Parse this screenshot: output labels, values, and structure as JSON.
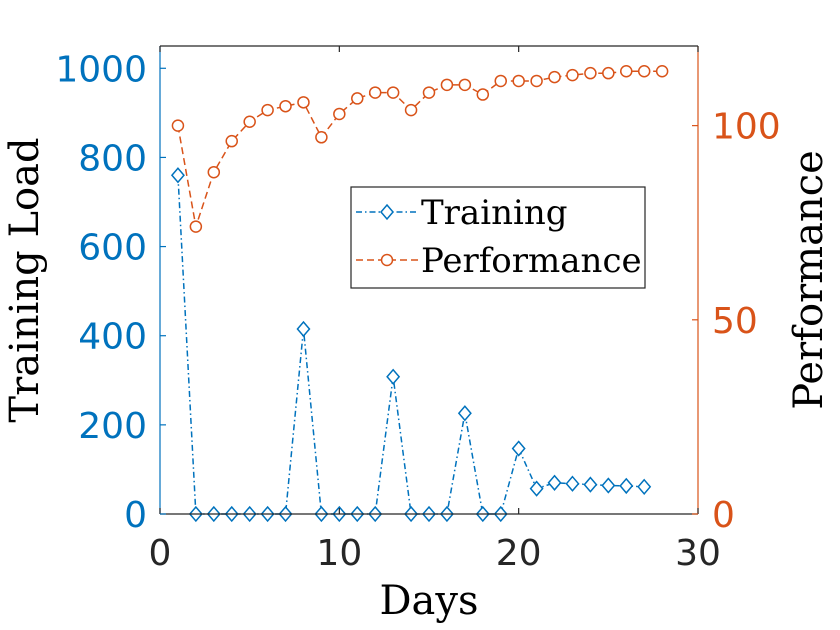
{
  "chart_data": {
    "type": "line",
    "title": "",
    "xlabel": "Days",
    "ylabel_left": "Training Load",
    "ylabel_right": "Performance",
    "xlim": [
      0,
      30
    ],
    "ylim_left": [
      0,
      1050
    ],
    "ylim_right": [
      0,
      120.5
    ],
    "xticks": [
      0,
      10,
      20,
      30
    ],
    "yticks_left": [
      0,
      200,
      400,
      600,
      800,
      1000
    ],
    "yticks_right": [
      0,
      50,
      100
    ],
    "grid": false,
    "legend_position": "center-right",
    "series": [
      {
        "name": "Training",
        "axis": "left",
        "color": "#0072BD",
        "line_style": "dash-dot",
        "marker": "diamond",
        "x": [
          1,
          2,
          3,
          4,
          5,
          6,
          7,
          8,
          9,
          10,
          11,
          12,
          13,
          14,
          15,
          16,
          17,
          18,
          19,
          20,
          21,
          22,
          23,
          24,
          25,
          26,
          27
        ],
        "values": [
          760,
          0,
          0,
          0,
          0,
          0,
          0,
          415,
          0,
          0,
          0,
          0,
          308,
          0,
          0,
          0,
          226,
          0,
          0,
          147,
          57,
          70,
          68,
          66,
          64,
          63,
          61
        ]
      },
      {
        "name": "Performance",
        "axis": "right",
        "color": "#D95319",
        "line_style": "dashed",
        "marker": "circle",
        "x": [
          1,
          2,
          3,
          4,
          5,
          6,
          7,
          8,
          9,
          10,
          11,
          12,
          13,
          14,
          15,
          16,
          17,
          18,
          19,
          20,
          21,
          22,
          23,
          24,
          25,
          26,
          27,
          28
        ],
        "values": [
          100,
          74,
          88,
          96,
          101,
          104,
          105,
          106,
          97,
          103,
          107,
          108.5,
          108.5,
          104,
          108.5,
          110.5,
          110.5,
          108,
          111.5,
          111.5,
          111.5,
          112.5,
          113,
          113.5,
          113.5,
          114,
          114,
          114
        ]
      }
    ]
  }
}
